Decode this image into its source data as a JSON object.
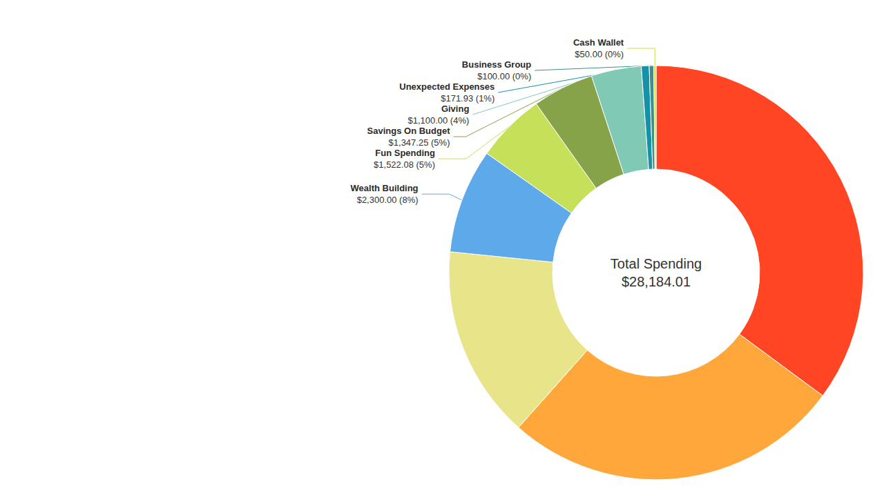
{
  "chart_data": {
    "type": "donut",
    "annotations": [
      "Total Spending",
      "$28,184.01"
    ],
    "categories": [
      null,
      null,
      null,
      "Wealth Building",
      "Fun Spending",
      "Savings On Budget",
      "Giving",
      "Unexpected Expenses",
      "Business Group",
      "Cash Wallet"
    ],
    "values": [
      9900,
      7450,
      4242.75,
      2300,
      1522.08,
      1347.25,
      1100,
      171.93,
      100,
      50
    ],
    "value_labels": [
      null,
      null,
      null,
      "$2,300.00 (8%)",
      "$1,522.08 (5%)",
      "$1,347.25 (5%)",
      "$1,100.00 (4%)",
      "$171.93 (1%)",
      "$100.00 (0%)",
      "$50.00 (0%)"
    ],
    "colors": [
      "#ff4524",
      "#ffa73a",
      "#e8e48a",
      "#5da9e9",
      "#c6e05a",
      "#86a34a",
      "#7fc9b5",
      "#1592a8",
      "#3f8f8a",
      "#d0dc3c"
    ],
    "data_labels": true,
    "legend": false
  }
}
